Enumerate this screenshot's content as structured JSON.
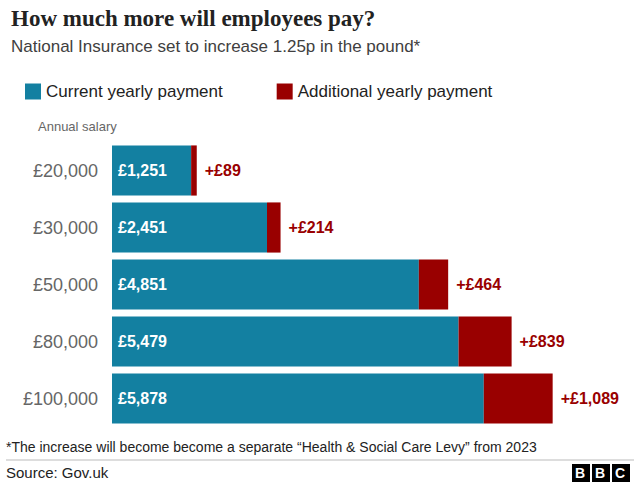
{
  "chart_data": {
    "type": "bar",
    "orientation": "horizontal",
    "stacked": true,
    "title": "How much more will employees pay?",
    "subtitle": "National Insurance set to increase 1.25p in the pound*",
    "category_axis_label": "Annual salary",
    "categories": [
      "£20,000",
      "£30,000",
      "£50,000",
      "£80,000",
      "£100,000"
    ],
    "series": [
      {
        "name": "Current yearly payment",
        "color": "#1380a1",
        "values": [
          1251,
          2451,
          4851,
          5479,
          5878
        ],
        "value_labels": [
          "£1,251",
          "£2,451",
          "£4,851",
          "£5,479",
          "£5,878"
        ]
      },
      {
        "name": "Additional yearly payment",
        "color": "#990000",
        "values": [
          89,
          214,
          464,
          839,
          1089
        ],
        "value_labels": [
          "+£89",
          "+£214",
          "+£464",
          "+£839",
          "+£1,089"
        ]
      }
    ],
    "xlim": [
      0,
      8000
    ],
    "grid": false,
    "legend": "top-left",
    "data_labels": true,
    "tick_labels": "y",
    "footnote": "*The increase will become become a separate “Health & Social Care Levy” from 2023",
    "source": "Source: Gov.uk",
    "logo": "BBC"
  }
}
